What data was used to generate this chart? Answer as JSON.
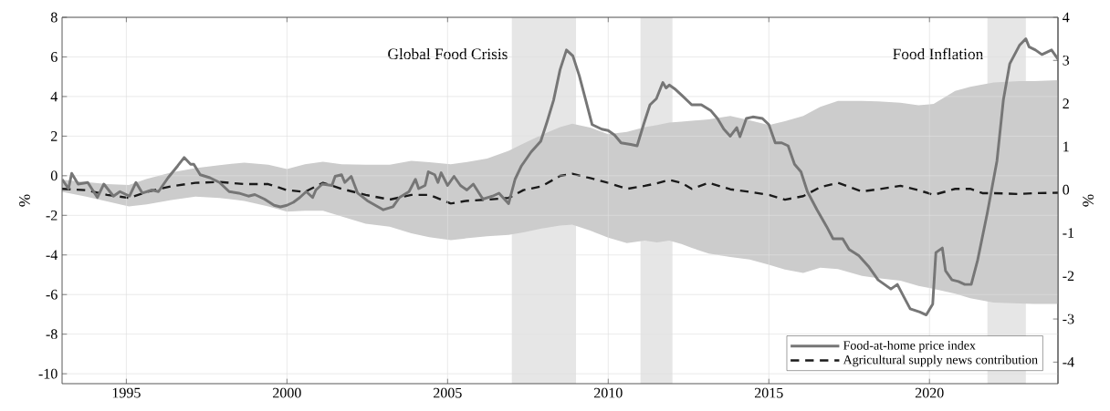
{
  "chart_data": {
    "type": "line",
    "ylabel": "%",
    "y2label": "%",
    "xlim": [
      1993,
      2024
    ],
    "xticks": [
      1995,
      2000,
      2005,
      2010,
      2015,
      2020
    ],
    "ylim": [
      -10.5,
      8
    ],
    "yticks": [
      -10,
      -8,
      -6,
      -4,
      -2,
      0,
      2,
      4,
      6,
      8
    ],
    "y2lim": [
      -4.5,
      4
    ],
    "y2ticks": [
      -4,
      -3,
      -2,
      -1,
      0,
      1,
      2,
      3,
      4
    ],
    "grid": true,
    "legend": "bottom right",
    "bands": [
      {
        "axis": "x",
        "from": 2007,
        "to": 2009,
        "label": "Global Food Crisis",
        "color": "#e6e6e6"
      },
      {
        "axis": "x",
        "from": 2011,
        "to": 2012,
        "color": "#e6e6e6"
      },
      {
        "axis": "x",
        "from": 2021.8,
        "to": 2023,
        "label": "Food Inflation",
        "color": "#e6e6e6"
      }
    ],
    "series": [
      {
        "name": "Food-at-home price index",
        "color": "#767676",
        "line_style": "solid",
        "x": [
          1993.0,
          1993.2,
          1993.3,
          1993.5,
          1993.8,
          1994.1,
          1994.3,
          1994.6,
          1994.8,
          1995.1,
          1995.3,
          1995.5,
          1995.8,
          1996.0,
          1996.3,
          1996.6,
          1996.8,
          1997.0,
          1997.1,
          1997.3,
          1997.6,
          1997.9,
          1998.2,
          1998.5,
          1998.8,
          1999.0,
          1999.3,
          1999.6,
          1999.8,
          2000.0,
          2000.2,
          2000.4,
          2000.6,
          2000.8,
          2000.9,
          2001.1,
          2001.4,
          2001.5,
          2001.7,
          2001.8,
          2002.0,
          2002.2,
          2002.5,
          2003.0,
          2003.3,
          2003.5,
          2003.8,
          2004.0,
          2004.1,
          2004.3,
          2004.4,
          2004.6,
          2004.7,
          2004.8,
          2005.0,
          2005.2,
          2005.4,
          2005.6,
          2005.8,
          2006.1,
          2006.4,
          2006.6,
          2006.9,
          2007.1,
          2007.3,
          2007.6,
          2007.9,
          2008.1,
          2008.3,
          2008.5,
          2008.7,
          2008.9,
          2009.1,
          2009.3,
          2009.5,
          2009.8,
          2010.0,
          2010.2,
          2010.4,
          2010.7,
          2010.9,
          2011.1,
          2011.3,
          2011.5,
          2011.7,
          2011.8,
          2011.9,
          2012.1,
          2012.3,
          2012.6,
          2012.9,
          2013.2,
          2013.4,
          2013.6,
          2013.8,
          2014.0,
          2014.1,
          2014.3,
          2014.5,
          2014.8,
          2015.0,
          2015.2,
          2015.4,
          2015.6,
          2015.8,
          2016.0,
          2016.2,
          2016.5,
          2016.8,
          2017.0,
          2017.3,
          2017.5,
          2017.8,
          2018.1,
          2018.4,
          2018.6,
          2018.8,
          2019.0,
          2019.2,
          2019.4,
          2019.7,
          2019.9,
          2020.1,
          2020.2,
          2020.4,
          2020.5,
          2020.7,
          2020.9,
          2021.1,
          2021.3,
          2021.5,
          2021.8,
          2022.1,
          2022.3,
          2022.5,
          2022.8,
          2023.0,
          2023.1,
          2023.3,
          2023.5,
          2023.8,
          2024.0
        ],
        "values": [
          -0.18,
          -0.65,
          0.12,
          -0.42,
          -0.34,
          -1.1,
          -0.42,
          -1.03,
          -0.8,
          -1.03,
          -0.34,
          -0.88,
          -0.72,
          -0.8,
          -0.1,
          0.5,
          0.92,
          0.58,
          0.58,
          0.05,
          -0.1,
          -0.34,
          -0.8,
          -0.88,
          -1.03,
          -0.95,
          -1.18,
          -1.49,
          -1.57,
          -1.49,
          -1.34,
          -1.1,
          -0.8,
          -1.1,
          -0.72,
          -0.42,
          -0.49,
          -0.03,
          0.05,
          -0.34,
          -0.03,
          -0.88,
          -1.26,
          -1.72,
          -1.57,
          -1.1,
          -0.8,
          -0.18,
          -0.65,
          -0.49,
          0.2,
          0.05,
          -0.34,
          0.15,
          -0.49,
          -0.03,
          -0.49,
          -0.72,
          -0.42,
          -1.18,
          -1.03,
          -0.88,
          -1.41,
          -0.18,
          0.5,
          1.2,
          1.74,
          2.74,
          3.82,
          5.35,
          6.35,
          6.05,
          5.05,
          3.82,
          2.58,
          2.35,
          2.28,
          2.05,
          1.66,
          1.58,
          1.51,
          2.58,
          3.58,
          3.89,
          4.71,
          4.43,
          4.58,
          4.35,
          4.05,
          3.58,
          3.58,
          3.28,
          2.89,
          2.35,
          2.0,
          2.43,
          1.97,
          2.89,
          2.97,
          2.89,
          2.58,
          1.66,
          1.66,
          1.51,
          0.58,
          0.2,
          -0.8,
          -1.72,
          -2.57,
          -3.18,
          -3.18,
          -3.72,
          -4.03,
          -4.57,
          -5.26,
          -5.49,
          -5.72,
          -5.49,
          -6.11,
          -6.72,
          -6.88,
          -7.03,
          -6.49,
          -3.88,
          -3.65,
          -4.8,
          -5.26,
          -5.34,
          -5.49,
          -5.49,
          -4.26,
          -1.88,
          0.74,
          3.82,
          5.66,
          6.58,
          6.92,
          6.51,
          6.35,
          6.12,
          6.35,
          5.89
        ]
      },
      {
        "axis": "y2",
        "name": "Agricultural supply news contribution",
        "color": "#1a1a1a",
        "line_style": "dashed",
        "x": [
          1993.0,
          1993.75,
          1994.4,
          1995.08,
          1995.64,
          1996.4,
          1997.15,
          1997.9,
          1998.67,
          1999.42,
          2000.0,
          2000.56,
          2001.12,
          2001.7,
          2002.45,
          2003.2,
          2003.87,
          2004.43,
          2005.1,
          2005.57,
          2006.23,
          2006.9,
          2007.36,
          2007.93,
          2008.5,
          2008.88,
          2009.44,
          2010.0,
          2010.58,
          2011.14,
          2011.52,
          2011.9,
          2012.28,
          2012.6,
          2013.13,
          2013.8,
          2014.4,
          2015.0,
          2015.5,
          2016.07,
          2016.6,
          2017.15,
          2017.9,
          2018.4,
          2019.1,
          2019.66,
          2020.13,
          2020.8,
          2021.27,
          2021.65,
          2022.0,
          2022.8,
          2023.25,
          2024.0
        ],
        "values": [
          0.02,
          -0.01,
          -0.12,
          -0.19,
          -0.05,
          0.08,
          0.16,
          0.18,
          0.13,
          0.13,
          -0.01,
          -0.05,
          0.16,
          0.02,
          -0.12,
          -0.23,
          -0.12,
          -0.12,
          -0.32,
          -0.26,
          -0.23,
          -0.19,
          -0.01,
          0.08,
          0.32,
          0.37,
          0.27,
          0.16,
          0.02,
          0.09,
          0.15,
          0.23,
          0.16,
          0.02,
          0.16,
          0.01,
          -0.05,
          -0.12,
          -0.23,
          -0.15,
          0.06,
          0.16,
          -0.04,
          0.01,
          0.09,
          -0.01,
          -0.12,
          0.02,
          0.02,
          -0.08,
          -0.08,
          -0.1,
          -0.08,
          -0.07
        ],
        "lower": [
          -0.05,
          -0.16,
          -0.27,
          -0.39,
          -0.34,
          -0.24,
          -0.16,
          -0.19,
          -0.26,
          -0.39,
          -0.51,
          -0.49,
          -0.49,
          -0.62,
          -0.79,
          -0.86,
          -1.01,
          -1.1,
          -1.17,
          -1.13,
          -1.08,
          -1.05,
          -0.99,
          -0.9,
          -0.83,
          -0.81,
          -0.95,
          -1.11,
          -1.24,
          -1.18,
          -1.22,
          -1.18,
          -1.26,
          -1.35,
          -1.48,
          -1.56,
          -1.62,
          -1.74,
          -1.85,
          -1.93,
          -1.81,
          -1.84,
          -2.0,
          -2.05,
          -2.11,
          -2.23,
          -2.3,
          -2.41,
          -2.52,
          -2.57,
          -2.62,
          -2.64,
          -2.65,
          -2.65
        ],
        "upper": [
          0.23,
          0.18,
          0.13,
          0.11,
          0.25,
          0.4,
          0.5,
          0.57,
          0.63,
          0.58,
          0.48,
          0.59,
          0.65,
          0.59,
          0.58,
          0.58,
          0.67,
          0.64,
          0.59,
          0.64,
          0.72,
          0.9,
          1.07,
          1.27,
          1.45,
          1.53,
          1.44,
          1.29,
          1.34,
          1.45,
          1.5,
          1.56,
          1.58,
          1.6,
          1.63,
          1.71,
          1.61,
          1.5,
          1.59,
          1.71,
          1.92,
          2.06,
          2.06,
          2.05,
          2.02,
          1.96,
          1.99,
          2.29,
          2.39,
          2.44,
          2.49,
          2.52,
          2.52,
          2.54
        ]
      }
    ]
  }
}
